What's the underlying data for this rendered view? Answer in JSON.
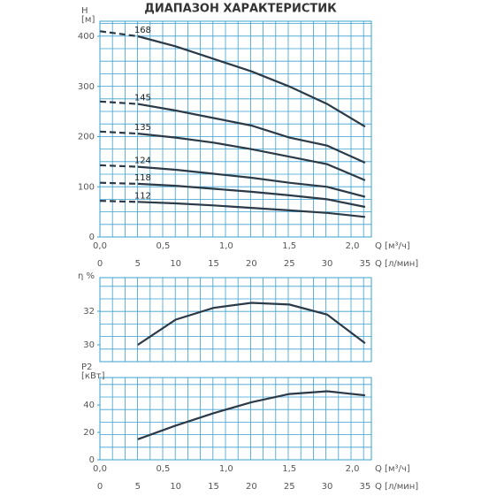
{
  "chart_data": [
    {
      "type": "line",
      "title": "ДИАПАЗОН ХАРАКТЕРИСТИК",
      "y_label": "H",
      "y_unit": "[м]",
      "x_label": "Q [м³/ч]",
      "x2_label": "Q [л/мин]",
      "x": [
        0,
        0.3,
        0.6,
        0.9,
        1.2,
        1.5,
        1.8,
        2.1
      ],
      "series": [
        {
          "name": "168",
          "color": "#2b3a46",
          "values": [
            410,
            400,
            380,
            355,
            330,
            300,
            265,
            220
          ]
        },
        {
          "name": "145",
          "color": "#2b3a46",
          "values": [
            270,
            265,
            252,
            237,
            222,
            198,
            182,
            148
          ]
        },
        {
          "name": "135",
          "color": "#2b3a46",
          "values": [
            210,
            206,
            198,
            188,
            175,
            160,
            145,
            113
          ]
        },
        {
          "name": "124",
          "color": "#2b3a46",
          "values": [
            143,
            140,
            134,
            126,
            118,
            108,
            100,
            80
          ]
        },
        {
          "name": "118",
          "color": "#2b3a46",
          "values": [
            108,
            106,
            102,
            96,
            90,
            83,
            75,
            60
          ]
        },
        {
          "name": "112",
          "color": "#2b3a46",
          "values": [
            72,
            70,
            67,
            63,
            58,
            53,
            48,
            40
          ]
        }
      ],
      "xlim": [
        0,
        2.15
      ],
      "xticks": [
        {
          "value": 0,
          "label": "0,0"
        },
        {
          "value": 0.5,
          "label": "0,5"
        },
        {
          "value": 1,
          "label": "1,0"
        },
        {
          "value": 1.5,
          "label": "1,5"
        },
        {
          "value": 2,
          "label": "2,0"
        }
      ],
      "x2lim": [
        0,
        35.83
      ],
      "x2ticks": [
        0,
        5,
        10,
        15,
        20,
        25,
        30,
        35
      ],
      "ylim": [
        0,
        430
      ],
      "yticks": [
        0,
        100,
        200,
        300,
        400
      ],
      "grid": true
    },
    {
      "type": "line",
      "y_label": "η %",
      "x": [
        0.3,
        0.6,
        0.9,
        1.2,
        1.5,
        1.8,
        2.1
      ],
      "series": [
        {
          "name": "η",
          "color": "#2b3a46",
          "values": [
            30.0,
            31.5,
            32.2,
            32.5,
            32.4,
            31.8,
            30.1
          ]
        }
      ],
      "xlim": [
        0,
        2.15
      ],
      "ylim": [
        29,
        34
      ],
      "yticks": [
        30,
        32
      ],
      "grid": true
    },
    {
      "type": "line",
      "y_label": "P2",
      "y_unit": "[кВт]",
      "x_label": "Q [м³/ч]",
      "x2_label": "Q [л/мин]",
      "x": [
        0.3,
        0.6,
        0.9,
        1.2,
        1.5,
        1.8,
        2.1
      ],
      "series": [
        {
          "name": "P2",
          "color": "#2b3a46",
          "values": [
            15,
            25,
            34,
            42,
            48,
            50,
            47
          ]
        }
      ],
      "xlim": [
        0,
        2.15
      ],
      "xticks": [
        {
          "value": 0,
          "label": "0,0"
        },
        {
          "value": 0.5,
          "label": "0,5"
        },
        {
          "value": 1,
          "label": "1,0"
        },
        {
          "value": 1.5,
          "label": "1,5"
        },
        {
          "value": 2,
          "label": "2,0"
        }
      ],
      "x2lim": [
        0,
        35.83
      ],
      "x2ticks": [
        0,
        5,
        10,
        15,
        20,
        25,
        30,
        35
      ],
      "ylim": [
        0,
        60
      ],
      "yticks": [
        0,
        20,
        40
      ],
      "grid": true
    }
  ]
}
